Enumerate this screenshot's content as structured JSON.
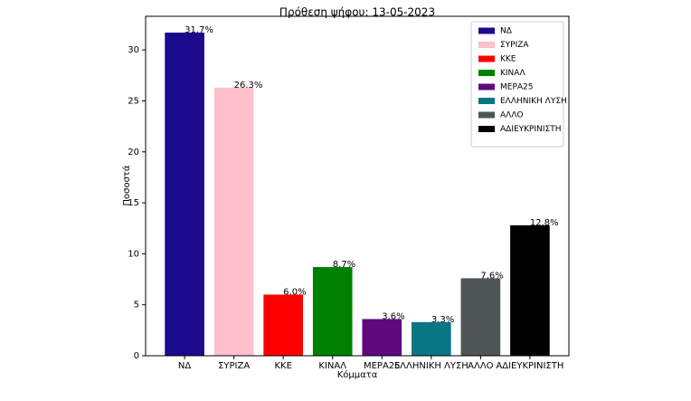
{
  "chart_data": {
    "type": "bar",
    "title": "Πρόθεση ψήφου: 13-05-2023",
    "x_label": "Κόμματα",
    "y_label": "Ποσοστά",
    "categories": [
      "ΝΔ",
      "ΣΥΡΙΖΑ",
      "ΚΚΕ",
      "ΚΙΝΑΛ",
      "ΜΕΡΑ25",
      "ΕΛΛΗΝΙΚΗ ΛΥΣΗ",
      "ΑΛΛΟ",
      "ΑΔΙΕΥΚΡΙΝΙΣΤΗ"
    ],
    "values": [
      31.7,
      26.3,
      6.0,
      8.7,
      3.6,
      3.3,
      7.6,
      12.8
    ],
    "value_labels": [
      "31.7%",
      "26.3%",
      "6.0%",
      "8.7%",
      "3.6%",
      "3.3%",
      "7.6%",
      "12.8%"
    ],
    "colors": [
      "#1c0a8e",
      "#ffc0cb",
      "#ff0000",
      "#008000",
      "#5e0a7e",
      "#0a7585",
      "#4f5555",
      "#000000"
    ],
    "ylim": [
      0,
      33.3
    ],
    "yticks": [
      0,
      5,
      10,
      15,
      20,
      25,
      30
    ],
    "legend": "upper right"
  }
}
